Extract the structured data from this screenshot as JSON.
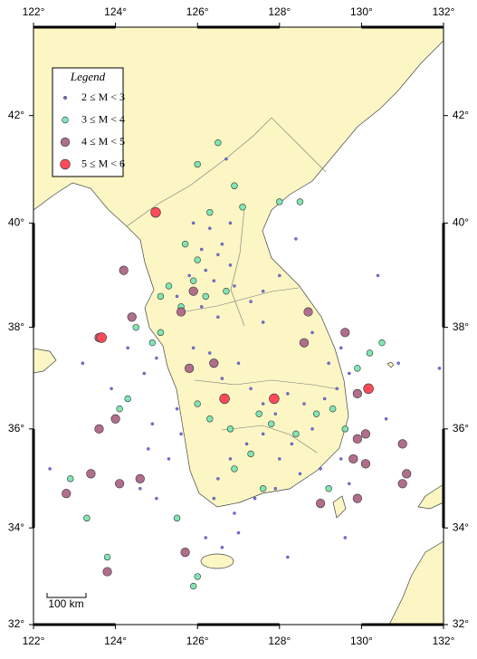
{
  "chart_data": {
    "type": "map",
    "legend_title": "Legend",
    "scale_label": "100 km",
    "xlim": [
      122,
      132
    ],
    "ylim": [
      32,
      43.6
    ],
    "xticks": [
      {
        "value": 122,
        "label": "122°"
      },
      {
        "value": 124,
        "label": "124°"
      },
      {
        "value": 126,
        "label": "126°"
      },
      {
        "value": 128,
        "label": "128°"
      },
      {
        "value": 130,
        "label": "130°"
      },
      {
        "value": 132,
        "label": "132°"
      }
    ],
    "yticks": [
      {
        "value": 32,
        "label": "32°"
      },
      {
        "value": 34,
        "label": "34°"
      },
      {
        "value": 36,
        "label": "36°"
      },
      {
        "value": 38,
        "label": "38°"
      },
      {
        "value": 40,
        "label": "40°"
      },
      {
        "value": 42,
        "label": "42°"
      }
    ],
    "series": [
      {
        "name": "2 ≤ M < 3",
        "color": "#7070f0",
        "x": [
          126.3,
          126.6,
          126.1,
          126.5,
          126.8,
          126.2,
          125.8,
          126.4,
          126.9,
          125.5,
          126.1,
          126.5,
          127.6,
          127.3,
          128.0,
          128.4,
          126.8,
          125.9,
          126.7,
          127.6,
          124.3,
          125.0,
          124.7,
          126.3,
          126.6,
          127.0,
          127.3,
          127.6,
          127.9,
          128.2,
          128.6,
          128.8,
          129.1,
          129.4,
          129.7,
          129.5,
          129.2,
          128.3,
          128.0,
          127.6,
          127.2,
          126.8,
          126.5,
          126.4,
          126.9,
          127.4,
          127.9,
          128.5,
          129.0,
          129.5,
          129.7,
          125.3,
          124.8,
          124.9,
          125.5,
          125.9,
          123.2,
          123.9,
          124.6,
          125.0,
          126.2,
          126.6,
          127.0,
          128.2,
          129.6,
          130.6,
          130.9,
          131.9,
          130.4,
          128.8,
          122.4,
          125.6
        ],
        "values": [
          39.9,
          39.6,
          39.5,
          39.4,
          39.2,
          39.1,
          39.0,
          38.9,
          38.8,
          38.6,
          38.4,
          38.2,
          38.7,
          38.5,
          39.0,
          39.7,
          40.0,
          40.0,
          41.2,
          38.1,
          37.6,
          37.4,
          37.1,
          37.5,
          37.0,
          37.3,
          36.8,
          36.5,
          36.3,
          36.7,
          36.5,
          36.0,
          36.6,
          36.8,
          37.1,
          37.6,
          37.3,
          35.7,
          35.4,
          35.9,
          35.7,
          35.4,
          35.0,
          34.6,
          34.3,
          34.6,
          34.8,
          35.1,
          35.2,
          35.4,
          34.9,
          35.4,
          35.6,
          36.1,
          36.4,
          37.6,
          37.3,
          36.8,
          34.8,
          34.6,
          33.8,
          33.6,
          33.9,
          33.4,
          33.8,
          36.2,
          37.3,
          37.2,
          39.0,
          37.9,
          35.2,
          35.9
        ]
      },
      {
        "name": "3 ≤ M < 4",
        "color": "#80e6b4",
        "x": [
          126.5,
          126.0,
          126.9,
          128.0,
          127.1,
          126.3,
          128.5,
          125.7,
          126.0,
          125.9,
          125.3,
          125.1,
          126.2,
          126.7,
          125.6,
          124.5,
          124.9,
          125.1,
          126.0,
          126.3,
          126.8,
          127.5,
          127.8,
          128.4,
          128.9,
          129.3,
          129.6,
          129.9,
          130.2,
          130.5,
          124.1,
          124.3,
          122.9,
          123.3,
          123.8,
          125.5,
          126.0,
          125.9,
          127.6,
          129.2,
          126.9,
          127.3
        ],
        "values": [
          41.5,
          41.1,
          40.7,
          40.4,
          40.3,
          40.2,
          40.4,
          39.6,
          39.3,
          38.9,
          38.8,
          38.6,
          38.6,
          38.7,
          38.4,
          38.0,
          37.7,
          37.9,
          36.5,
          36.2,
          36.0,
          36.3,
          36.1,
          35.9,
          36.3,
          36.4,
          36.0,
          37.2,
          37.5,
          37.7,
          36.4,
          36.6,
          35.0,
          34.2,
          33.4,
          34.2,
          33.0,
          32.8,
          34.8,
          34.8,
          35.2,
          35.5
        ]
      },
      {
        "name": "4 ≤ M < 5",
        "color": "#b06e8c",
        "x": [
          124.2,
          125.9,
          125.6,
          124.4,
          123.6,
          125.8,
          126.4,
          128.7,
          128.6,
          129.6,
          129.9,
          130.1,
          129.9,
          123.6,
          124.0,
          123.4,
          122.8,
          124.1,
          124.6,
          129.8,
          130.1,
          131.0,
          131.1,
          131.0,
          129.9,
          129.0,
          125.7,
          123.8
        ],
        "values": [
          39.1,
          38.7,
          38.3,
          38.2,
          37.8,
          37.2,
          37.3,
          38.3,
          37.7,
          37.9,
          36.7,
          35.9,
          35.8,
          36.0,
          36.2,
          35.1,
          34.7,
          34.9,
          35.0,
          35.4,
          35.3,
          35.7,
          35.1,
          34.9,
          34.6,
          34.5,
          33.5,
          33.1
        ]
      },
      {
        "name": "5 ≤ M < 6",
        "color": "#ff4a5a",
        "x": [
          124.98,
          123.66,
          126.66,
          127.87,
          130.17
        ],
        "values": [
          40.2,
          37.8,
          36.6,
          36.6,
          36.8
        ]
      }
    ]
  }
}
